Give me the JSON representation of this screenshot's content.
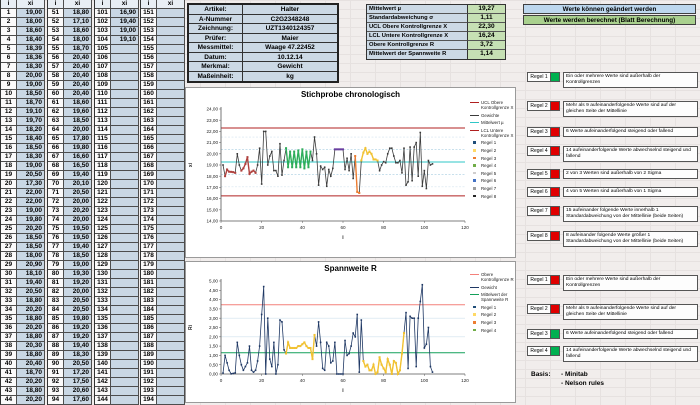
{
  "data_table": {
    "header_i": "i",
    "header_x": "xi",
    "groups": [
      {
        "start": 1,
        "values": [
          "19,00",
          "18,00",
          "18,60",
          "18,40",
          "18,39",
          "18,36",
          "18,30",
          "20,00",
          "19,00",
          "18,50",
          "18,70",
          "19,10",
          "19,70",
          "18,20",
          "18,40",
          "18,50",
          "18,30",
          "19,00",
          "20,50",
          "17,30",
          "22,00",
          "22,00",
          "19,00",
          "19,80",
          "20,20",
          "18,50",
          "18,50",
          "18,00",
          "20,90",
          "18,10",
          "19,40",
          "20,50",
          "18,80",
          "20,20",
          "18,80",
          "20,20",
          "18,80",
          "20,30",
          "18,80",
          "20,40",
          "18,70",
          "20,20",
          "18,80",
          "20,20"
        ]
      },
      {
        "start": 51,
        "values": [
          "18,80",
          "17,10",
          "18,60",
          "18,00",
          "18,70",
          "20,40",
          "20,40",
          "20,40",
          "20,40",
          "20,40",
          "18,60",
          "19,60",
          "18,50",
          "20,00",
          "17,80",
          "19,80",
          "16,60",
          "16,50",
          "19,40",
          "20,10",
          "20,50",
          "20,00",
          "20,20",
          "20,00",
          "19,50",
          "19,50",
          "19,40",
          "18,50",
          "19,00",
          "19,30",
          "19,20",
          "20,00",
          "20,50",
          "20,50",
          "19,80",
          "19,20",
          "19,20",
          "19,40",
          "18,30",
          "20,50",
          "17,20",
          "17,50",
          "20,60",
          "17,60"
        ]
      },
      {
        "start": 101,
        "values": [
          "16,90",
          "19,40",
          "19,00",
          "19,10",
          "",
          "",
          "",
          "",
          "",
          "",
          "",
          "",
          "",
          "",
          "",
          "",
          "",
          "",
          "",
          "",
          "",
          "",
          "",
          "",
          "",
          "",
          "",
          "",
          "",
          "",
          "",
          "",
          "",
          "",
          "",
          "",
          "",
          "",
          "",
          "",
          "",
          "",
          "",
          ""
        ]
      },
      {
        "start": 151,
        "values": [
          "",
          "",
          "",
          "",
          "",
          "",
          "",
          "",
          "",
          "",
          "",
          "",
          "",
          "",
          "",
          "",
          "",
          "",
          "",
          "",
          "",
          "",
          "",
          "",
          "",
          "",
          "",
          "",
          "",
          "",
          "",
          "",
          "",
          "",
          "",
          "",
          "",
          "",
          "",
          "",
          "",
          "",
          "",
          ""
        ]
      }
    ]
  },
  "info_table": {
    "rows": [
      {
        "label": "Artikel:",
        "value": "Halter"
      },
      {
        "label": "A-Nummer",
        "value": "C2G2348248"
      },
      {
        "label": "Zeichnung:",
        "value": "UZT1340124357"
      },
      {
        "label": "Prüfer:",
        "value": "Maier"
      },
      {
        "label": "Messmittel:",
        "value": "Waage 47.22452"
      },
      {
        "label": "Datum:",
        "value": "10.12.14"
      },
      {
        "label": "Merkmal:",
        "value": "Gewicht"
      },
      {
        "label": "Maßeinheit:",
        "value": "kg"
      }
    ]
  },
  "stats_table": {
    "rows": [
      {
        "label": "Mittelwert µ",
        "value": "19,27"
      },
      {
        "label": "Standardabweichung σ",
        "value": "1,11"
      },
      {
        "label": "UCL Obere Kontrollgrenze X",
        "value": "22,30"
      },
      {
        "label": "LCL Untere Kontrollgrenze X",
        "value": "16,24"
      },
      {
        "label": "Obere Kontrollgrenze R",
        "value": "3,72"
      },
      {
        "label": "Mittelwert der Spannweite R",
        "value": "1,14"
      }
    ]
  },
  "note_boxes": {
    "editable": "Werte können geändert werden",
    "calculated": "Werte werden berechnet (Blatt Berechnung)"
  },
  "chart_data": [
    {
      "type": "line",
      "title": "Stichprobe chronologisch",
      "xlabel": "i",
      "ylabel": "xi",
      "xlim": [
        0,
        120
      ],
      "ylim": [
        14,
        24
      ],
      "xticks": [
        0,
        20,
        40,
        60,
        80,
        100,
        120
      ],
      "ytick_step": 1,
      "mean": 19.27,
      "sigma": 1.11,
      "ucl": 22.3,
      "lcl": 16.24,
      "series": [
        {
          "name": "Gewichte",
          "values": [
            19.0,
            18.0,
            18.6,
            18.4,
            18.39,
            18.36,
            18.3,
            20.0,
            19.0,
            18.5,
            18.7,
            19.1,
            19.7,
            18.2,
            18.4,
            18.5,
            18.3,
            19.0,
            20.5,
            17.3,
            22.0,
            22.0,
            19.0,
            19.8,
            20.2,
            18.5,
            18.5,
            18.0,
            20.9,
            18.1,
            19.4,
            20.5,
            18.8,
            20.2,
            18.8,
            20.2,
            18.8,
            20.3,
            18.8,
            20.4,
            18.7,
            20.2,
            18.8,
            20.2,
            19.4,
            21.5,
            20.0,
            17.2,
            18.9,
            18.6,
            18.8,
            17.1,
            18.6,
            18.0,
            18.7,
            20.4,
            20.4,
            20.4,
            20.4,
            20.4,
            18.6,
            19.6,
            18.5,
            20.0,
            17.8,
            19.8,
            16.6,
            16.5,
            19.4,
            20.1,
            20.5,
            20.0,
            20.2,
            20.0,
            19.5,
            19.5,
            19.4,
            18.5,
            19.0,
            19.3,
            19.2,
            20.0,
            20.5,
            20.5,
            19.8,
            19.2,
            19.2,
            19.4,
            18.3,
            20.5,
            17.2,
            17.5,
            20.6,
            17.6,
            20.6,
            21.0,
            18.0,
            21.9,
            17.1,
            18.5,
            16.9,
            19.4,
            19.0,
            19.1
          ]
        }
      ],
      "rule_overlays": [
        {
          "from": 2,
          "to": 7,
          "color": "#b0413e"
        },
        {
          "from": 10,
          "to": 17,
          "color": "#b0413e"
        },
        {
          "from": 32,
          "to": 44,
          "color": "#2eae5a"
        },
        {
          "from": 56,
          "to": 60,
          "color": "#6a3fa0"
        },
        {
          "from": 66,
          "to": 68,
          "color": "#ed7d31"
        },
        {
          "from": 69,
          "to": 77,
          "color": "#f2c230"
        }
      ],
      "colors": {
        "ucl": "#b02020",
        "lcl": "#b02020",
        "mean": "#2fc7c7",
        "series": "#3b3b3b",
        "sigma1": "#a8cde2",
        "sigma2": "#d4e4ef"
      },
      "legend": {
        "lines": [
          {
            "label": "UCL Obere Kontrollgrenze X",
            "color": "#b02020"
          },
          {
            "label": "Gewichte",
            "color": "#3b3b3b"
          },
          {
            "label": "Mittelwert µ",
            "color": "#2fc7c7"
          },
          {
            "label": "LCL Untere Kontrollgrenze X",
            "color": "#b02020"
          }
        ],
        "markers": [
          {
            "label": "Regel 1",
            "color": "#1f4e79"
          },
          {
            "label": "Regel 2",
            "color": "#ffd966"
          },
          {
            "label": "Regel 3",
            "color": "#ed7d31"
          },
          {
            "label": "Regel 4",
            "color": "#70ad47"
          },
          {
            "label": "Regel 5",
            "color": "#d0cece"
          },
          {
            "label": "Regel 6",
            "color": "#4472c4"
          },
          {
            "label": "Regel 7",
            "color": "#9e9e9e"
          },
          {
            "label": "Regel 8",
            "color": "#262626"
          }
        ]
      }
    },
    {
      "type": "line",
      "title": "Spannweite R",
      "xlabel": "i",
      "ylabel": "Ri",
      "xlim": [
        0,
        120
      ],
      "ylim": [
        0,
        5
      ],
      "xticks": [
        0,
        20,
        40,
        60,
        80,
        100,
        120
      ],
      "ytick_step": 0.5,
      "mean": 1.14,
      "ucl": 3.72,
      "derived_from": "moving range of series in chart 0",
      "rule_overlays": [
        {
          "from": 32,
          "to": 46,
          "color": "#f2c230"
        },
        {
          "from": 70,
          "to": 90,
          "color": "#f2c230"
        }
      ],
      "colors": {
        "ucl": "#f4807a",
        "mean": "#14a05a",
        "series": "#1f3864",
        "grid": "#cfe0ec"
      },
      "legend": {
        "lines": [
          {
            "label": "Obere Kontrollgrenze R",
            "color": "#f4807a"
          },
          {
            "label": "Gewicht",
            "color": "#1f3864"
          },
          {
            "label": "Mittelwert der Spannweite R",
            "color": "#14a05a"
          }
        ],
        "markers": [
          {
            "label": "Regel 1",
            "color": "#1f4e79"
          },
          {
            "label": "Regel 2",
            "color": "#ffd966"
          },
          {
            "label": "Regel 3",
            "color": "#ed7d31"
          },
          {
            "label": "Regel 4",
            "color": "#70ad47"
          }
        ]
      }
    }
  ],
  "rules_x": {
    "items": [
      {
        "label": "Regel 1",
        "status": "green",
        "text": "Ein oder mehrere Werte sind außerhalb der Kontrollgrenzen"
      },
      {
        "label": "Regel 2",
        "status": "red",
        "text": "Mehr als 9 aufeinanderfolgende Werte sind auf der gleichen Seite der Mittellinie"
      },
      {
        "label": "Regel 3",
        "status": "red",
        "text": "6 Werte aufeinanderfolgend steigend oder fallend"
      },
      {
        "label": "Regel 4",
        "status": "red",
        "text": "14 aufeinanderfolgende Werte abwechselnd steigend und fallend"
      },
      {
        "label": "Regel 5",
        "status": "red",
        "text": "2 von 3 Werten sind außerhalb von 2 Sigma"
      },
      {
        "label": "Regel 6",
        "status": "red",
        "text": "4 von 5 Werten sind außerhalb von 1 Sigma"
      },
      {
        "label": "Regel 7",
        "status": "red",
        "text": "15 aufeinander folgende Werte innerhalb 1 Standardabweichung von der Mittellinie (beide Seiten)"
      },
      {
        "label": "Regel 8",
        "status": "red",
        "text": "8 aufeinander folgende Werte größer 1 Standardabweichung von der Mittellinie (beide Seiten)"
      }
    ]
  },
  "rules_r": {
    "items": [
      {
        "label": "Regel 1",
        "status": "red",
        "text": "Ein oder mehrere Werte sind außerhalb der Kontrollgrenzen"
      },
      {
        "label": "Regel 2",
        "status": "red",
        "text": "Mehr als 9 aufeinanderfolgende Werte sind auf der gleichen Seite der Mittellinie"
      },
      {
        "label": "Regel 3",
        "status": "green",
        "text": "6 Werte aufeinanderfolgend steigend oder fallend"
      },
      {
        "label": "Regel 4",
        "status": "green",
        "text": "14 aufeinanderfolgende Werte abwechselnd steigend und fallend"
      }
    ]
  },
  "basis": {
    "label": "Basis:",
    "items": [
      "- Minitab",
      "- Nelson rules"
    ]
  },
  "status_colors": {
    "green": "#00b050",
    "red": "#e00000"
  }
}
